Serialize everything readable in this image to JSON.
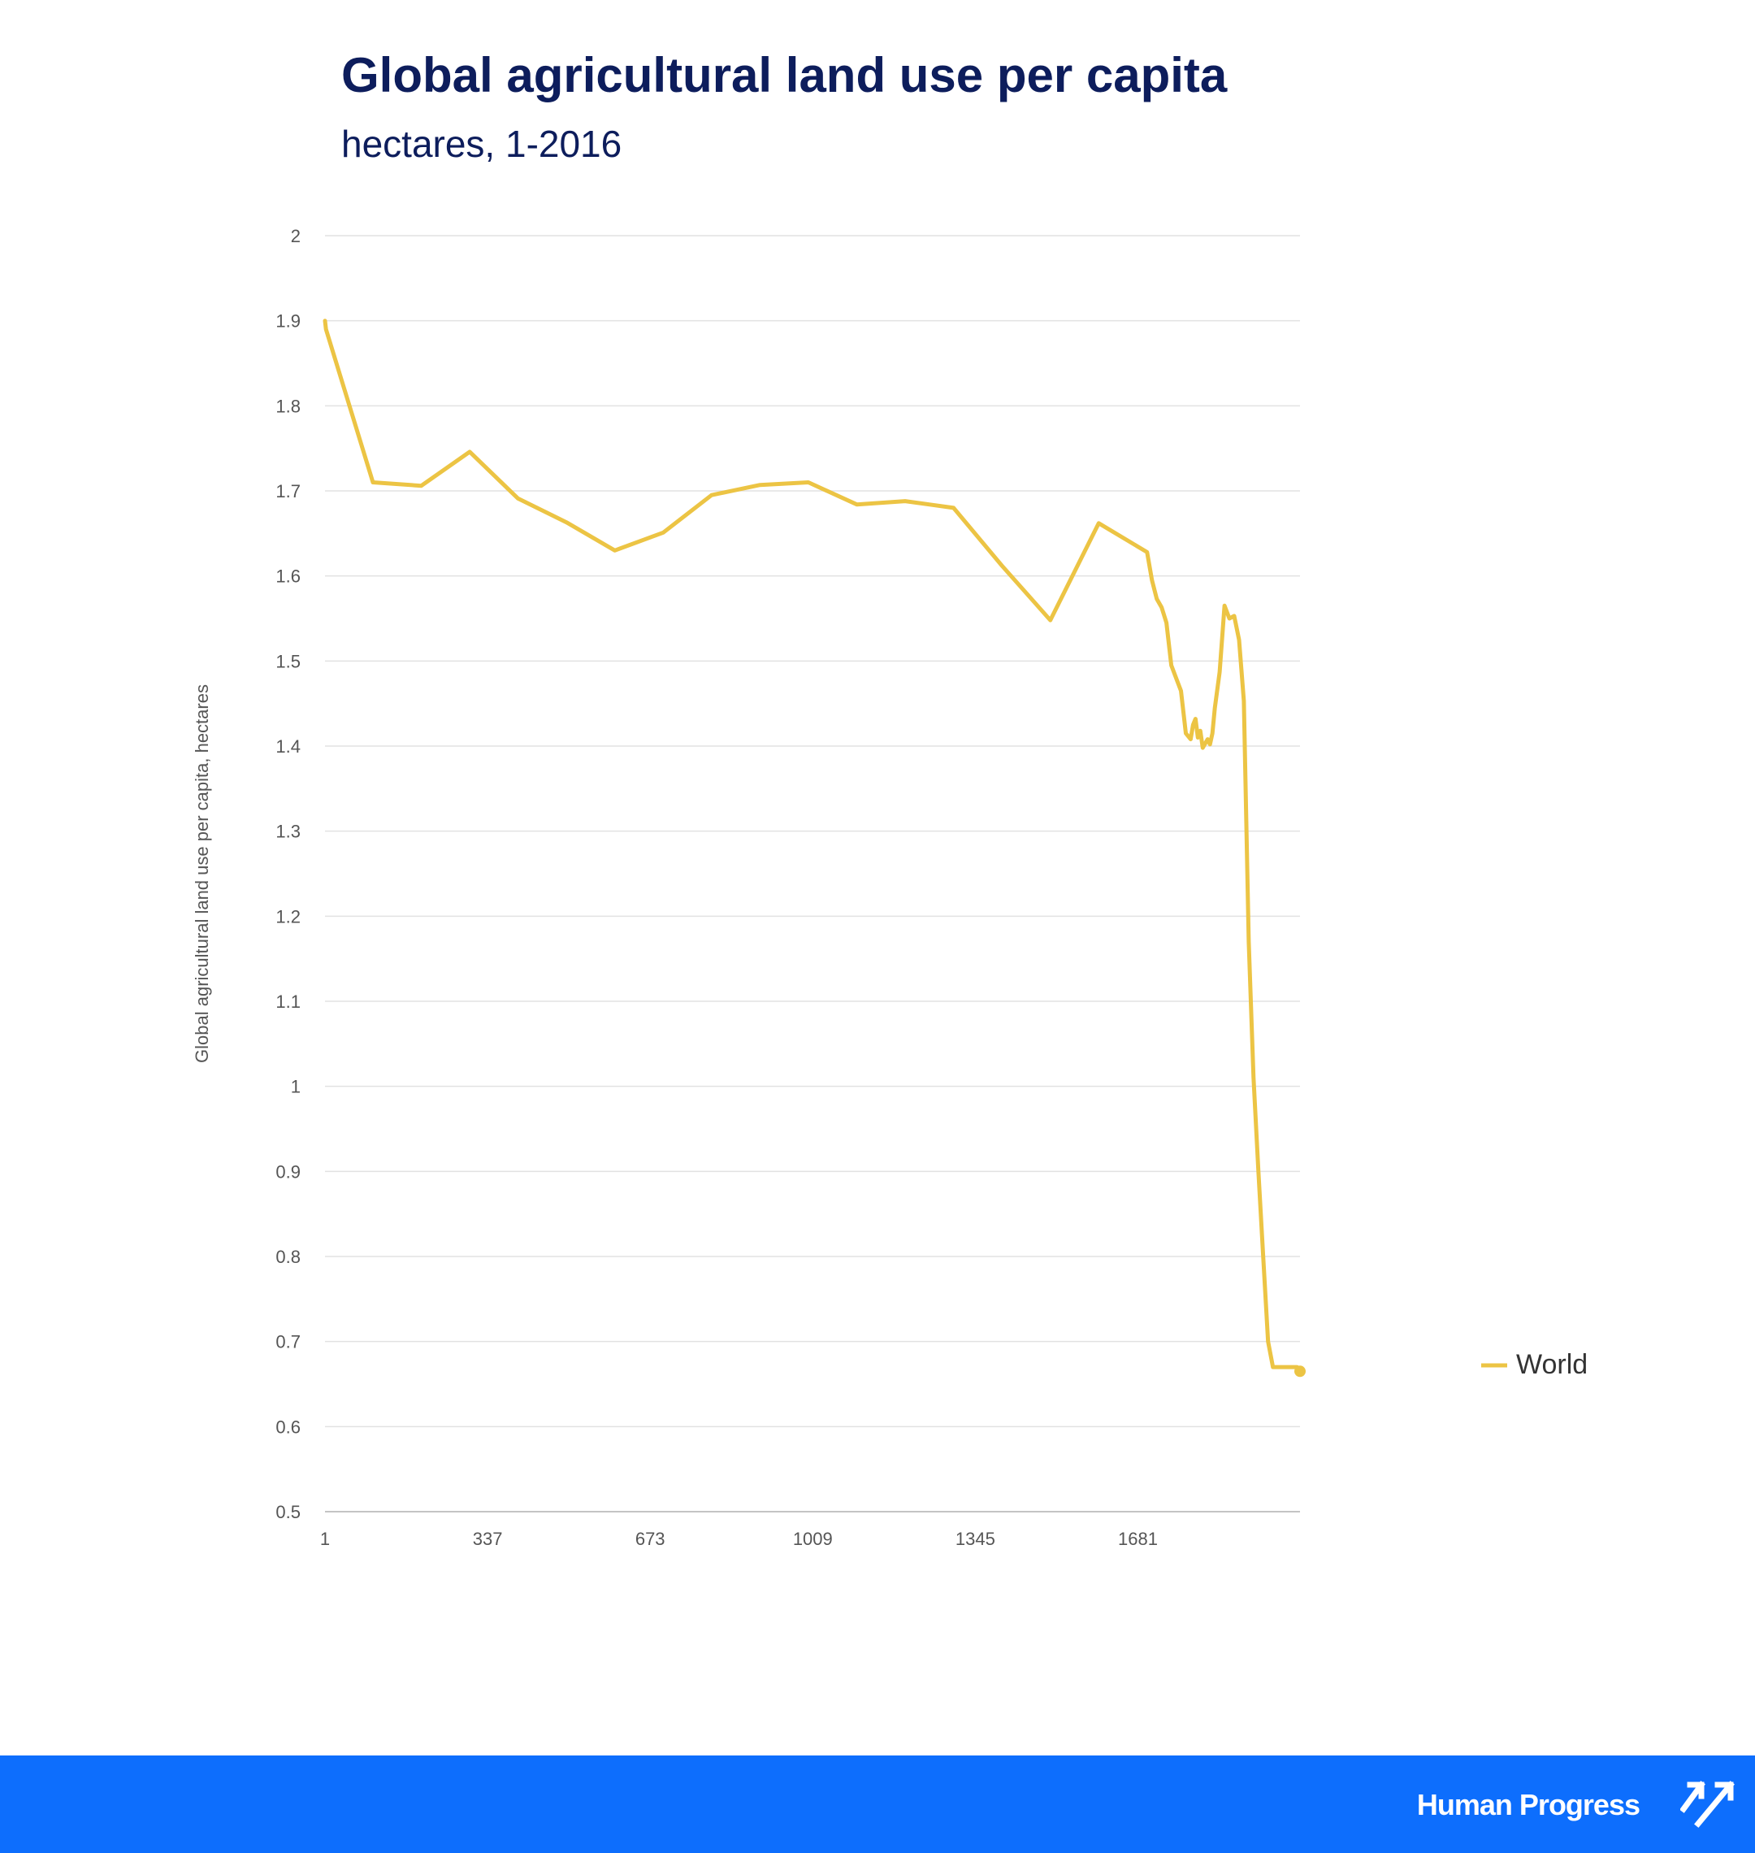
{
  "header": {
    "title": "Global agricultural land use per capita",
    "subtitle": "hectares, 1-2016"
  },
  "footer": {
    "brand_name": "Human Progress",
    "logo_icon": "double-arrow-up-right-icon"
  },
  "colors": {
    "series": "#ecc444",
    "title": "#0d1d5c",
    "footer_bg": "#0d6efd",
    "grid": "#e2e2e2"
  },
  "chart_data": {
    "type": "line",
    "title": "Global agricultural land use per capita",
    "subtitle": "hectares, 1-2016",
    "xlabel": "",
    "ylabel": "Global agricultural land use per capita, hectares",
    "xlim": [
      1,
      2016
    ],
    "ylim": [
      0.5,
      2
    ],
    "x_ticks": [
      1,
      337,
      673,
      1009,
      1345,
      1681
    ],
    "y_ticks": [
      0.5,
      0.6,
      0.7,
      0.8,
      0.9,
      1,
      1.1,
      1.2,
      1.3,
      1.4,
      1.5,
      1.6,
      1.7,
      1.8,
      1.9,
      2
    ],
    "y_tick_labels": [
      "0.5",
      "0.6",
      "0.7",
      "0.8",
      "0.9",
      "1",
      "1.1",
      "1.2",
      "1.3",
      "1.4",
      "1.5",
      "1.6",
      "1.7",
      "1.8",
      "1.9",
      "2"
    ],
    "grid": true,
    "legend_position": "right",
    "series": [
      {
        "name": "World",
        "color": "#ecc444",
        "x": [
          1,
          3,
          100,
          200,
          300,
          400,
          500,
          600,
          700,
          800,
          900,
          1000,
          1100,
          1200,
          1300,
          1400,
          1500,
          1600,
          1700,
          1710,
          1720,
          1730,
          1740,
          1750,
          1760,
          1770,
          1775,
          1780,
          1790,
          1795,
          1800,
          1805,
          1810,
          1815,
          1820,
          1825,
          1830,
          1835,
          1840,
          1850,
          1860,
          1870,
          1880,
          1890,
          1900,
          1910,
          1920,
          1930,
          1940,
          1950,
          1960,
          1970,
          1980,
          1990,
          2000,
          2010,
          2016
        ],
        "y": [
          1.9,
          1.89,
          1.71,
          1.706,
          1.746,
          1.691,
          1.663,
          1.63,
          1.651,
          1.695,
          1.707,
          1.71,
          1.684,
          1.688,
          1.68,
          1.612,
          1.548,
          1.662,
          1.628,
          1.595,
          1.573,
          1.563,
          1.545,
          1.495,
          1.48,
          1.465,
          1.44,
          1.415,
          1.408,
          1.425,
          1.432,
          1.41,
          1.418,
          1.398,
          1.403,
          1.408,
          1.402,
          1.415,
          1.445,
          1.487,
          1.565,
          1.55,
          1.553,
          1.525,
          1.453,
          1.17,
          1.01,
          0.9,
          0.8,
          0.7,
          0.67,
          0.67,
          0.67,
          0.67,
          0.67,
          0.67,
          0.665
        ]
      }
    ]
  }
}
